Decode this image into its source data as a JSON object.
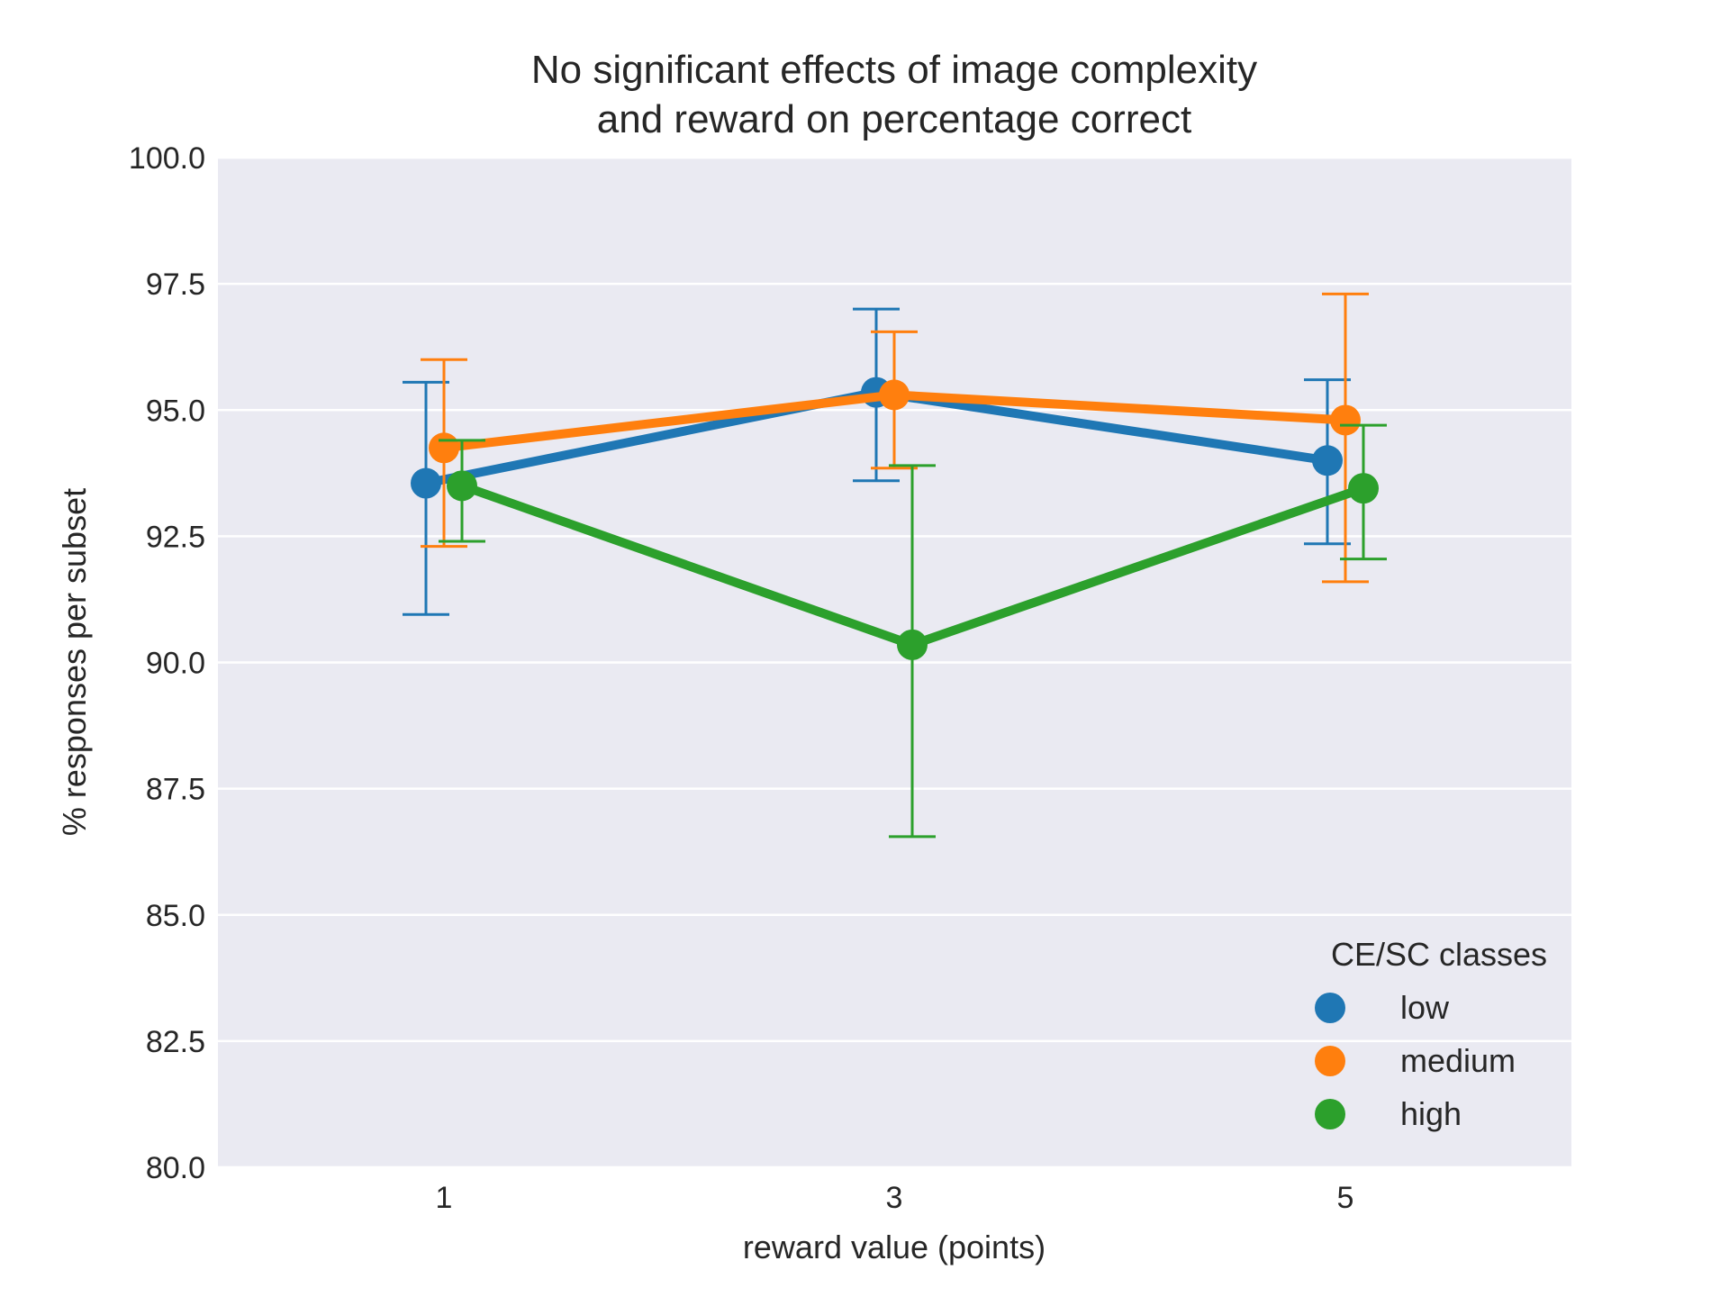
{
  "chart_data": {
    "type": "line",
    "title_lines": [
      "No significant effects of image complexity",
      "and reward on percentage correct"
    ],
    "xlabel": "reward value (points)",
    "ylabel": "% responses per subset",
    "categories": [
      "1",
      "3",
      "5"
    ],
    "ylim": [
      80.0,
      100.0
    ],
    "yticks": [
      "80.0",
      "82.5",
      "85.0",
      "87.5",
      "90.0",
      "92.5",
      "95.0",
      "97.5",
      "100.0"
    ],
    "grid": true,
    "legend": {
      "title": "CE/SC classes",
      "placement": "lower-right"
    },
    "series": [
      {
        "name": "low",
        "color": "#1f77b4",
        "values": [
          93.55,
          95.35,
          94.0
        ],
        "ci_low": [
          90.95,
          93.6,
          92.35
        ],
        "ci_high": [
          95.55,
          97.0,
          95.6
        ]
      },
      {
        "name": "medium",
        "color": "#ff7f0e",
        "values": [
          94.25,
          95.3,
          94.8
        ],
        "ci_low": [
          92.3,
          93.85,
          91.6
        ],
        "ci_high": [
          96.0,
          96.55,
          97.3
        ]
      },
      {
        "name": "high",
        "color": "#2ca02c",
        "values": [
          93.5,
          90.35,
          93.45
        ],
        "ci_low": [
          92.4,
          86.55,
          92.05
        ],
        "ci_high": [
          94.4,
          93.9,
          94.7
        ]
      }
    ]
  }
}
